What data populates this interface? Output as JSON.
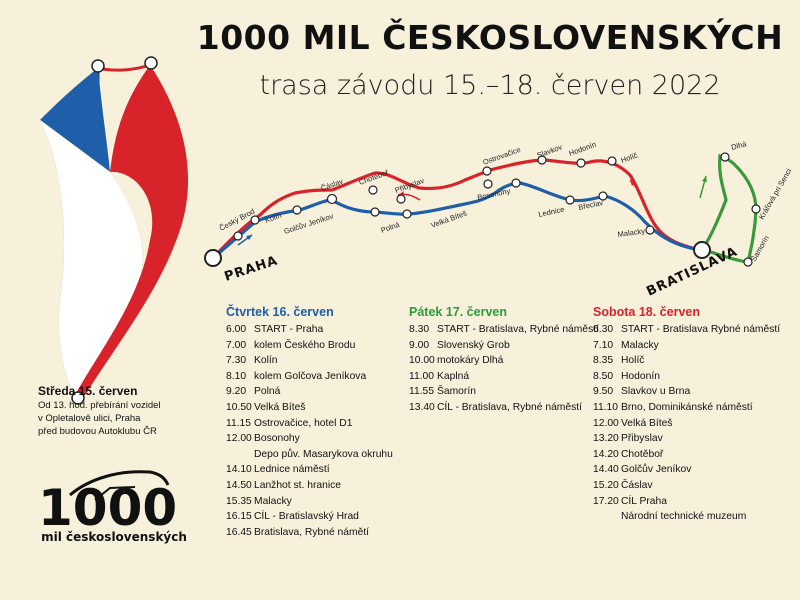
{
  "header": {
    "title": "1000 MIL ČESKOSLOVENSKÝCH",
    "subtitle": "trasa závodu 15.–18. červen 2022"
  },
  "map": {
    "start_label": "PRAHA",
    "turn_label": "BRATISLAVA",
    "cities": {
      "cesky_brod": "Český Brod",
      "kolin": "Kolín",
      "golcuv_jenikov": "Golčův Jeníkov",
      "caslav": "Čáslav",
      "chotebor": "Chotěboř",
      "pribyslav": "Přibyslav",
      "polna": "Polná",
      "velka_bites": "Velká Bíteš",
      "ostrovacice": "Ostrovačice",
      "bosonohy": "Bosonohy",
      "slavkov": "Slavkov",
      "hodonin": "Hodonín",
      "holic": "Holíč",
      "lednice": "Lednice",
      "breclav": "Břeclav",
      "malacky": "Malacky",
      "dlha": "Dlhá",
      "kralova_pri_senci": "Kráľová pri Senci",
      "samorin": "Šamorín"
    },
    "colors": {
      "thursday": "#1f5ea8",
      "friday": "#3a9a3a",
      "saturday": "#d8232a"
    }
  },
  "wednesday": {
    "heading": "Středa 15. červen",
    "lines": [
      "Od 13. hod. přebírání vozidel",
      "v Opletalově ulici, Praha",
      "před budovou Autoklubu ČR"
    ]
  },
  "logo": {
    "number": "1000",
    "text": "mil československých"
  },
  "days": [
    {
      "heading": "Čtvrtek 16. červen",
      "rows": [
        {
          "time": "6.00",
          "event": "START - Praha"
        },
        {
          "time": "7.00",
          "event": "kolem Českého Brodu"
        },
        {
          "time": "7.30",
          "event": "Kolín"
        },
        {
          "time": "8.10",
          "event": "kolem Golčova Jeníkova"
        },
        {
          "time": "9.20",
          "event": "Polná"
        },
        {
          "time": "10.50",
          "event": "Velká Bíteš"
        },
        {
          "time": "11.15",
          "event": "Ostrovačice, hotel D1"
        },
        {
          "time": "12.00",
          "event": "Bosonohy"
        },
        {
          "time": "",
          "event": "Depo pův. Masarykova okruhu"
        },
        {
          "time": "14.10",
          "event": "Lednice náměstí"
        },
        {
          "time": "14.50",
          "event": "Lanžhot st. hranice"
        },
        {
          "time": "15.35",
          "event": "Malacky"
        },
        {
          "time": "16.15",
          "event": "CÍL - Bratislavský Hrad"
        },
        {
          "time": "16.45",
          "event": "Bratislava, Rybné námětí"
        }
      ]
    },
    {
      "heading": "Pátek 17. červen",
      "rows": [
        {
          "time": "8.30",
          "event": "START - Bratislava, Rybné náměstí"
        },
        {
          "time": "9.00",
          "event": "Slovenský Grob"
        },
        {
          "time": "10.00",
          "event": "motokáry Dlhá"
        },
        {
          "time": "11.00",
          "event": "Kaplná"
        },
        {
          "time": "11.55",
          "event": "Šamorín"
        },
        {
          "time": "13.40",
          "event": "CÍL - Bratislava, Rybné náměstí"
        }
      ]
    },
    {
      "heading": "Sobota 18. červen",
      "rows": [
        {
          "time": "6.30",
          "event": "START - Bratislava Rybné náměstí"
        },
        {
          "time": "7.10",
          "event": "Malacky"
        },
        {
          "time": "8.35",
          "event": "Holíč"
        },
        {
          "time": "8.50",
          "event": "Hodonín"
        },
        {
          "time": "9.50",
          "event": "Slavkov u Brna"
        },
        {
          "time": "11.10",
          "event": "Brno, Dominikánské náměstí"
        },
        {
          "time": "12.00",
          "event": "Velká Bíteš"
        },
        {
          "time": "13.20",
          "event": "Přibyslav"
        },
        {
          "time": "14.20",
          "event": "Chotěboř"
        },
        {
          "time": "14.40",
          "event": "Golčův Jeníkov"
        },
        {
          "time": "15.20",
          "event": "Čáslav"
        },
        {
          "time": "17.20",
          "event": "CÍL Praha"
        },
        {
          "time": "",
          "event": "Národní technické muzeum"
        }
      ]
    }
  ]
}
